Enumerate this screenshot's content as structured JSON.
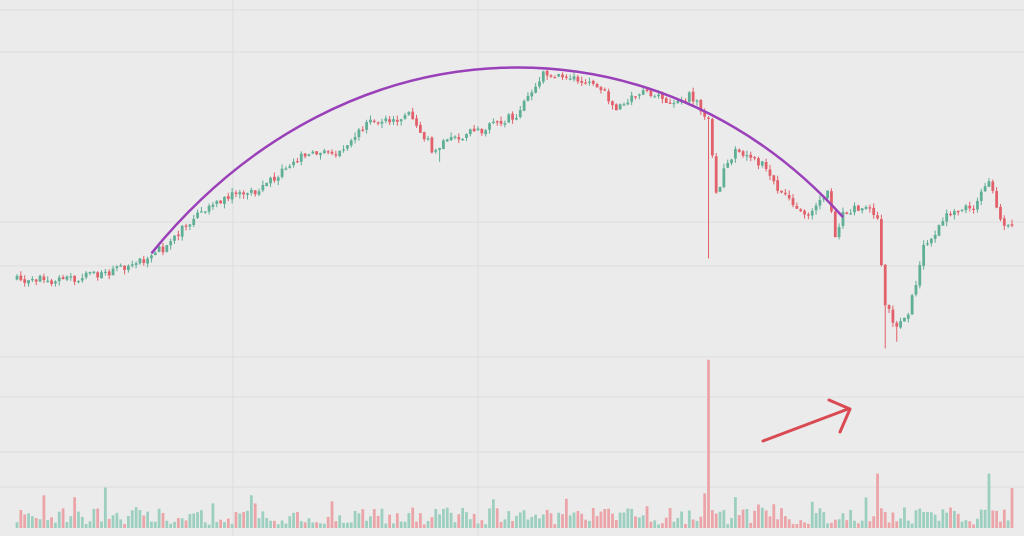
{
  "chart_data": {
    "type": "candlestick",
    "title": "",
    "xlabel": "",
    "ylabel": "",
    "grid": true,
    "legend": "none",
    "colors": {
      "background": "#ebebeb",
      "grid": "#dedede",
      "up": "#5fae96",
      "down": "#e2606a",
      "volume_up": "#9ccfbf",
      "volume_down": "#eba4a8",
      "trend_curve": "#9a40b8",
      "annotation_arrow": "#d94a52"
    },
    "price_range": [
      0,
      100
    ],
    "volume_range": [
      0,
      100
    ],
    "price_keypoints": [
      {
        "x": 0,
        "y": 23
      },
      {
        "x": 10,
        "y": 22.5
      },
      {
        "x": 20,
        "y": 24
      },
      {
        "x": 30,
        "y": 26.5
      },
      {
        "x": 38,
        "y": 32
      },
      {
        "x": 48,
        "y": 43
      },
      {
        "x": 56,
        "y": 48
      },
      {
        "x": 64,
        "y": 50
      },
      {
        "x": 74,
        "y": 60
      },
      {
        "x": 84,
        "y": 60.5
      },
      {
        "x": 92,
        "y": 70
      },
      {
        "x": 103,
        "y": 72
      },
      {
        "x": 108,
        "y": 62
      },
      {
        "x": 114,
        "y": 65
      },
      {
        "x": 122,
        "y": 68
      },
      {
        "x": 130,
        "y": 72
      },
      {
        "x": 137,
        "y": 85
      },
      {
        "x": 146,
        "y": 83
      },
      {
        "x": 152,
        "y": 80
      },
      {
        "x": 156,
        "y": 73
      },
      {
        "x": 163,
        "y": 80
      },
      {
        "x": 170,
        "y": 75
      },
      {
        "x": 175,
        "y": 78
      },
      {
        "x": 180,
        "y": 71
      },
      {
        "x": 182,
        "y": 48
      },
      {
        "x": 184,
        "y": 55
      },
      {
        "x": 187,
        "y": 62
      },
      {
        "x": 194,
        "y": 57
      },
      {
        "x": 200,
        "y": 47
      },
      {
        "x": 207,
        "y": 42
      },
      {
        "x": 211,
        "y": 50
      },
      {
        "x": 213,
        "y": 36
      },
      {
        "x": 215,
        "y": 42
      },
      {
        "x": 220,
        "y": 45
      },
      {
        "x": 224,
        "y": 41
      },
      {
        "x": 226,
        "y": 15
      },
      {
        "x": 229,
        "y": 8
      },
      {
        "x": 232,
        "y": 12
      },
      {
        "x": 236,
        "y": 32
      },
      {
        "x": 243,
        "y": 43
      },
      {
        "x": 249,
        "y": 44
      },
      {
        "x": 253,
        "y": 53
      },
      {
        "x": 256,
        "y": 41
      },
      {
        "x": 259,
        "y": 38
      }
    ],
    "trend_curve": {
      "shape": "arc",
      "x_start": 35,
      "x_peak": 128,
      "x_end": 215
    },
    "volume_spikes": [
      {
        "x": 180,
        "value": 99
      },
      {
        "x": 224,
        "value": 32
      },
      {
        "x": 253,
        "value": 32
      }
    ]
  }
}
